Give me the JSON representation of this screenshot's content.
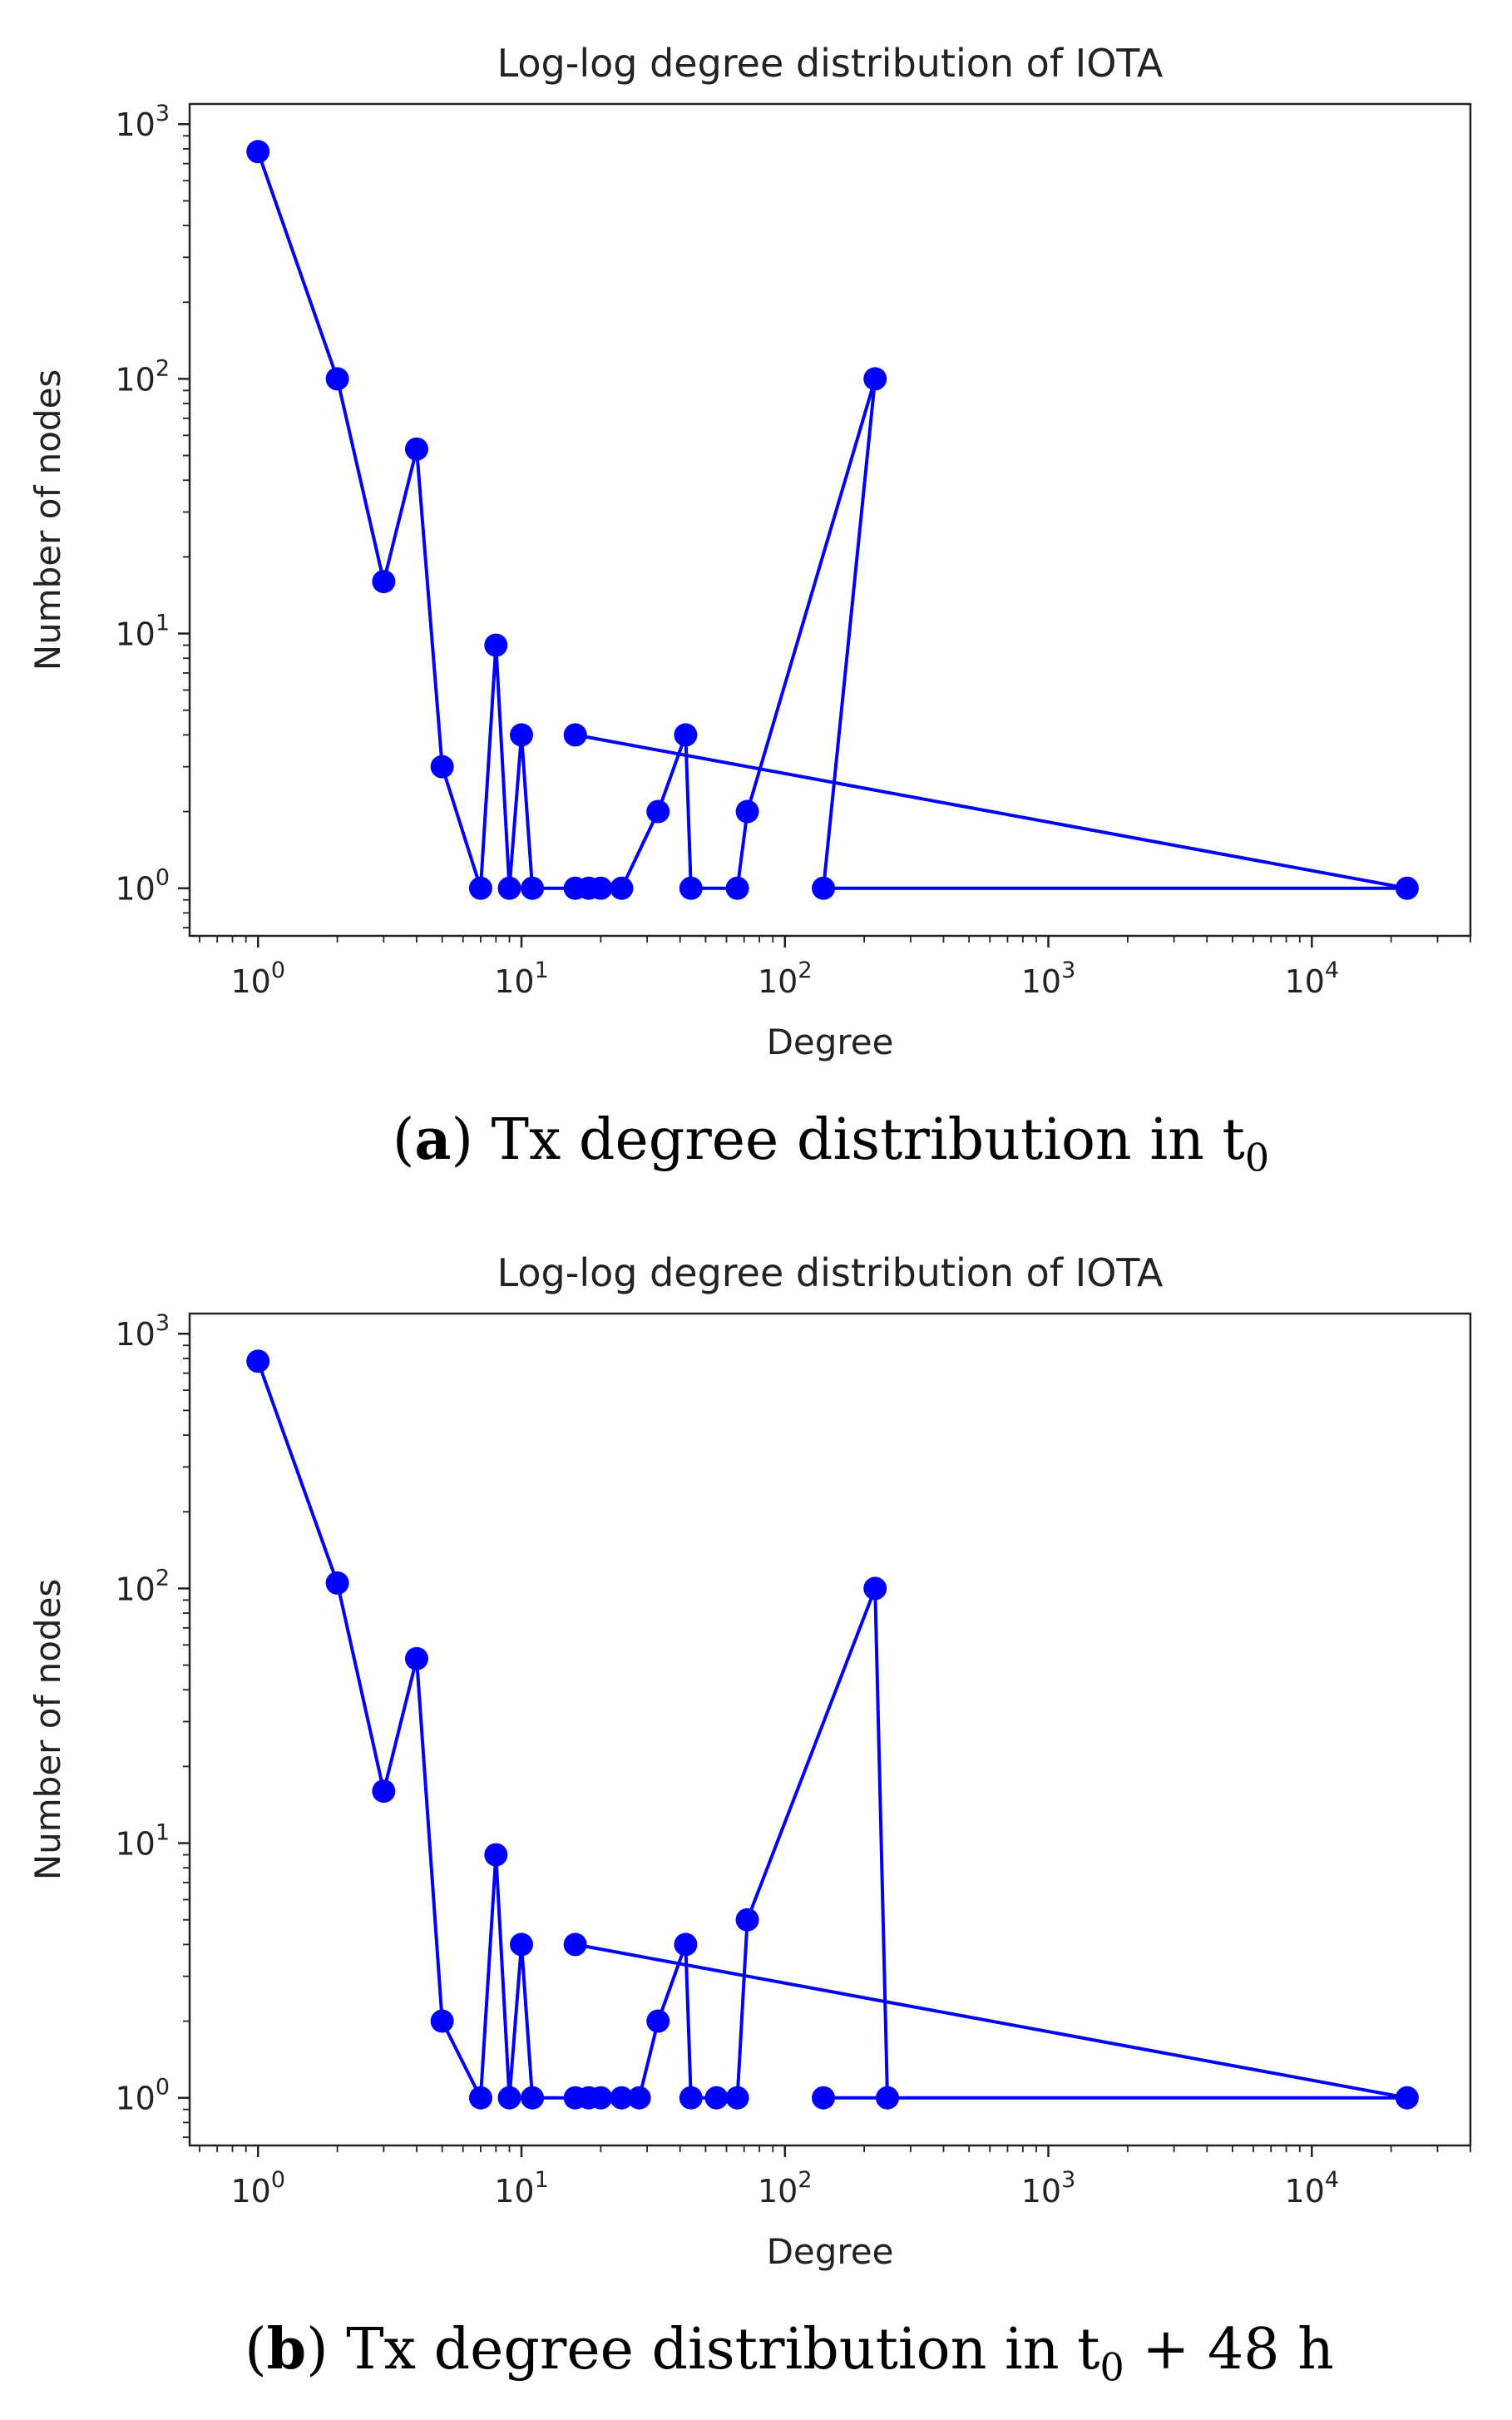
{
  "chart_data": [
    {
      "type": "line",
      "title": "Log-log degree distribution of IOTA",
      "xlabel": "Degree",
      "ylabel": "Number of nodes",
      "xscale": "log",
      "yscale": "log",
      "xlim": [
        0.55,
        40000
      ],
      "ylim": [
        0.65,
        1200
      ],
      "xticks": [
        {
          "base": "10",
          "exp": "0",
          "value": 1
        },
        {
          "base": "10",
          "exp": "1",
          "value": 10
        },
        {
          "base": "10",
          "exp": "2",
          "value": 100
        },
        {
          "base": "10",
          "exp": "3",
          "value": 1000
        },
        {
          "base": "10",
          "exp": "4",
          "value": 10000
        }
      ],
      "yticks": [
        {
          "base": "10",
          "exp": "0",
          "value": 1
        },
        {
          "base": "10",
          "exp": "1",
          "value": 10
        },
        {
          "base": "10",
          "exp": "2",
          "value": 100
        },
        {
          "base": "10",
          "exp": "3",
          "value": 1000
        }
      ],
      "color": "#0000ff",
      "series": [
        {
          "name": "Tx degree distribution",
          "x": [
            1,
            2,
            3,
            4,
            5,
            7,
            8,
            9,
            10,
            11,
            16,
            18,
            20,
            24,
            33,
            42,
            44,
            66,
            72,
            220,
            140,
            23000,
            16
          ],
          "y": [
            780,
            100,
            16,
            53,
            3,
            1,
            9,
            1,
            4,
            1,
            1,
            1,
            1,
            1,
            2,
            4,
            1,
            1,
            2,
            100,
            1,
            1,
            4
          ]
        }
      ],
      "caption": {
        "label": "a",
        "prefix": "(",
        "suffix": ") Tx degree distribution in t",
        "sub": "0",
        "after": ""
      }
    },
    {
      "type": "line",
      "title": "Log-log degree distribution of IOTA",
      "xlabel": "Degree",
      "ylabel": "Number of nodes",
      "xscale": "log",
      "yscale": "log",
      "xlim": [
        0.55,
        40000
      ],
      "ylim": [
        0.65,
        1200
      ],
      "xticks": [
        {
          "base": "10",
          "exp": "0",
          "value": 1
        },
        {
          "base": "10",
          "exp": "1",
          "value": 10
        },
        {
          "base": "10",
          "exp": "2",
          "value": 100
        },
        {
          "base": "10",
          "exp": "3",
          "value": 1000
        },
        {
          "base": "10",
          "exp": "4",
          "value": 10000
        }
      ],
      "yticks": [
        {
          "base": "10",
          "exp": "0",
          "value": 1
        },
        {
          "base": "10",
          "exp": "1",
          "value": 10
        },
        {
          "base": "10",
          "exp": "2",
          "value": 100
        },
        {
          "base": "10",
          "exp": "3",
          "value": 1000
        }
      ],
      "color": "#0000ff",
      "series": [
        {
          "name": "Tx degree distribution",
          "x": [
            1,
            2,
            3,
            4,
            5,
            7,
            8,
            9,
            10,
            11,
            16,
            18,
            20,
            24,
            28,
            33,
            42,
            44,
            55,
            66,
            72,
            220,
            245,
            140,
            23000,
            16
          ],
          "y": [
            780,
            105,
            16,
            53,
            2,
            1,
            9,
            1,
            4,
            1,
            1,
            1,
            1,
            1,
            1,
            2,
            4,
            1,
            1,
            1,
            5,
            100,
            1,
            1,
            1,
            4
          ]
        }
      ],
      "caption": {
        "label": "b",
        "prefix": "(",
        "suffix": ") Tx degree distribution in t",
        "sub": "0",
        "after": " + 48 h"
      }
    }
  ]
}
